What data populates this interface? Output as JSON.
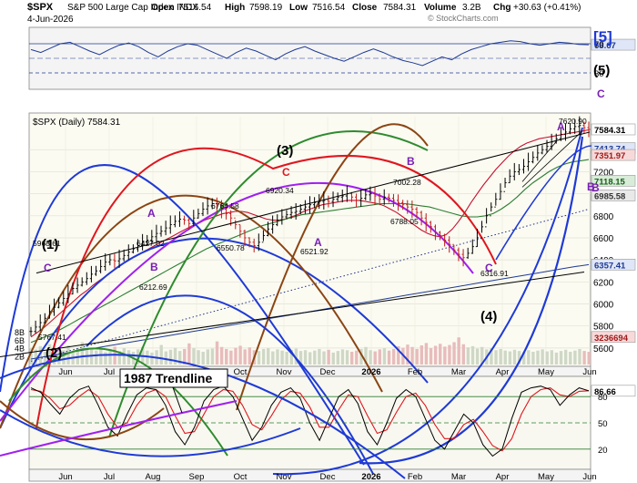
{
  "chart_data": {
    "type": "line",
    "header": {
      "symbol": "$SPX",
      "name": "S&P 500 Large Cap Index",
      "exchange": "INDX",
      "date": "4-Jun-2026",
      "open_label": "Open",
      "open": "7516.54",
      "high_label": "High",
      "high": "7598.19",
      "low_label": "Low",
      "low": "7516.54",
      "close_label": "Close",
      "close": "7584.31",
      "volume_label": "Volume",
      "volume": "3.2B",
      "chg_label": "Chg",
      "chg": "+30.63 (+0.41%)",
      "watermark": "© StockCharts.com"
    },
    "main_legend": "$SPX (Daily) 7584.31",
    "x_tick_labels": [
      "Jun",
      "Jul",
      "Aug",
      "Sep",
      "Oct",
      "Nov",
      "Dec",
      "2026",
      "Feb",
      "Mar",
      "Apr",
      "May",
      "Jun"
    ],
    "price_axis": {
      "ticks": [
        5600,
        5800,
        6000,
        6200,
        6400,
        6600,
        6800,
        7000,
        7200,
        7400
      ],
      "ylim": [
        5450,
        7700
      ],
      "badges": [
        {
          "value": 7584.31,
          "text": "7584.31",
          "bg": "#ffffff",
          "fg": "#000000"
        },
        {
          "value": 7413.74,
          "text": "7413.74",
          "bg": "#dfe6f7",
          "fg": "#1f3a93"
        },
        {
          "value": 7351.97,
          "text": "7351.97",
          "bg": "#f8d9d9",
          "fg": "#a01818"
        },
        {
          "value": 7118.15,
          "text": "7118.15",
          "bg": "#d9ecd9",
          "fg": "#166016"
        },
        {
          "value": 6985.58,
          "text": "6985.58",
          "bg": "#e9e9e9",
          "fg": "#333333"
        },
        {
          "value": 6357.41,
          "text": "6357.41",
          "bg": "#dfe6f7",
          "fg": "#1f3a93"
        },
        {
          "value": 5700,
          "text": "3236694",
          "bg": "#f8d9d9",
          "fg": "#a01818"
        }
      ]
    },
    "volume_axis": {
      "ticks": [
        {
          "value": 2,
          "text": "2B"
        },
        {
          "value": 4,
          "text": "4B"
        },
        {
          "value": 6,
          "text": "6B"
        },
        {
          "value": 8,
          "text": "8B"
        }
      ],
      "ylim": [
        0,
        16
      ]
    },
    "rsi_panel": {
      "ticks": [
        30,
        70
      ],
      "last_label": "68.67",
      "values": [
        62,
        58,
        64,
        70,
        72,
        66,
        60,
        55,
        62,
        68,
        71,
        66,
        58,
        52,
        60,
        66,
        70,
        68,
        62,
        56,
        50,
        58,
        64,
        60,
        54,
        48,
        56,
        62,
        66,
        60,
        55,
        50,
        46,
        52,
        58,
        63,
        58,
        52,
        47,
        44,
        40,
        46,
        52,
        48,
        56,
        62,
        66,
        70,
        72,
        74,
        73,
        70,
        68,
        70,
        72,
        71,
        69,
        68.67
      ]
    },
    "stoch_panel": {
      "ticks": [
        20,
        50,
        80
      ],
      "last_label": "86.66",
      "k_values": [
        90,
        85,
        72,
        60,
        78,
        88,
        92,
        70,
        45,
        35,
        60,
        82,
        90,
        88,
        70,
        40,
        25,
        45,
        75,
        88,
        92,
        80,
        55,
        30,
        45,
        70,
        85,
        90,
        78,
        50,
        30,
        55,
        80,
        88,
        72,
        40,
        25,
        50,
        78,
        88,
        80,
        55,
        30,
        20,
        40,
        60,
        50,
        25,
        12,
        20,
        55,
        85,
        90,
        92,
        88,
        70,
        82,
        90,
        86.66
      ],
      "d_values": [
        88,
        86,
        78,
        66,
        70,
        80,
        88,
        80,
        60,
        45,
        50,
        70,
        84,
        88,
        80,
        58,
        38,
        40,
        60,
        80,
        88,
        86,
        70,
        48,
        42,
        58,
        76,
        86,
        84,
        68,
        45,
        45,
        65,
        82,
        80,
        58,
        38,
        42,
        62,
        80,
        84,
        70,
        48,
        32,
        32,
        48,
        54,
        40,
        24,
        18,
        32,
        60,
        80,
        88,
        90,
        82,
        80,
        86,
        86.7
      ]
    },
    "price_series": [
      5750,
      5790,
      5830,
      5870,
      5930,
      5970,
      6010,
      6050,
      6090,
      6140,
      6170,
      6200,
      6230,
      6270,
      6300,
      6340,
      6380,
      6400,
      6390,
      6410,
      6440,
      6470,
      6500,
      6530,
      6560,
      6580,
      6610,
      6640,
      6660,
      6690,
      6720,
      6750,
      6770,
      6760,
      6730,
      6780,
      6820,
      6860,
      6890,
      6910,
      6900,
      6860,
      6820,
      6780,
      6720,
      6660,
      6600,
      6560,
      6530,
      6560,
      6620,
      6680,
      6720,
      6760,
      6790,
      6810,
      6830,
      6840,
      6860,
      6880,
      6900,
      6920,
      6930,
      6940,
      6930,
      6950,
      6970,
      6980,
      7000,
      6970,
      6940,
      6960,
      6990,
      7000,
      6980,
      6950,
      6970,
      6960,
      6940,
      6920,
      6900,
      6880,
      6860,
      6830,
      6780,
      6740,
      6700,
      6650,
      6620,
      6580,
      6540,
      6490,
      6450,
      6420,
      6460,
      6520,
      6600,
      6700,
      6800,
      6880,
      6950,
      7020,
      7100,
      7160,
      7200,
      7220,
      7250,
      7290,
      7330,
      7370,
      7400,
      7430,
      7470,
      7500,
      7540,
      7560,
      7590,
      7610,
      7620,
      7600,
      7584
    ],
    "volume_series": [
      4.1,
      3.8,
      4.6,
      3.2,
      5.1,
      4.4,
      3.9,
      3.6,
      4.8,
      3.3,
      4.2,
      5.6,
      3.7,
      4.0,
      3.5,
      4.3,
      3.1,
      3.9,
      4.5,
      3.4,
      4.1,
      3.6,
      3.2,
      3.8,
      4.4,
      3.5,
      3.0,
      3.6,
      4.9,
      3.3,
      3.7,
      4.2,
      3.4,
      3.9,
      5.3,
      4.1,
      3.6,
      3.2,
      3.8,
      4.0,
      5.8,
      4.4,
      3.9,
      3.5,
      4.2,
      4.7,
      3.8,
      4.3,
      3.6,
      3.4,
      3.9,
      4.1,
      3.3,
      3.8,
      3.5,
      3.2,
      3.7,
      4.0,
      3.4,
      3.6,
      3.1,
      3.5,
      3.9,
      3.3,
      3.7,
      3.0,
      3.4,
      3.8,
      3.6,
      3.2,
      3.5,
      3.9,
      4.4,
      3.6,
      3.3,
      3.8,
      4.1,
      3.5,
      3.9,
      4.6,
      4.2,
      5.0,
      4.4,
      3.9,
      4.8,
      5.4,
      4.1,
      4.7,
      5.2,
      4.5,
      4.9,
      5.6,
      6.8,
      5.1,
      4.3,
      4.6,
      4.0,
      4.4,
      3.8,
      4.1,
      3.6,
      3.9,
      3.5,
      3.3,
      3.7,
      3.4,
      3.1,
      3.6,
      3.2,
      3.5,
      3.8,
      3.3,
      3.6,
      3.0,
      3.4,
      3.7,
      3.2,
      3.5,
      3.9,
      3.4,
      3.2
    ],
    "moving_averages": [
      {
        "name": "sma20",
        "color": "#c8102e",
        "values": [
          5700,
          5740,
          5780,
          5830,
          5880,
          5930,
          5980,
          6030,
          6080,
          6120,
          6170,
          6210,
          6250,
          6290,
          6330,
          6370,
          6410,
          6440,
          6470,
          6500,
          6530,
          6560,
          6590,
          6620,
          6650,
          6680,
          6710,
          6730,
          6760,
          6780,
          6800,
          6820,
          6830,
          6840,
          6840,
          6830,
          6810,
          6790,
          6770,
          6760,
          6760,
          6770,
          6790,
          6810,
          6840,
          6860,
          6880,
          6900,
          6910,
          6920,
          6930,
          6940,
          6940,
          6940,
          6930,
          6920,
          6910,
          6890,
          6860,
          6830,
          6790,
          6750,
          6710,
          6670,
          6640,
          6620,
          6610,
          6630,
          6680,
          6750,
          6830,
          6920,
          7000,
          7080,
          7150,
          7220,
          7280,
          7340,
          7390,
          7430,
          7460,
          7480,
          7500,
          7510,
          7520,
          7530,
          7540,
          7550,
          7560,
          7570,
          7580
        ]
      },
      {
        "name": "sma50",
        "color": "#2e7d32",
        "values": [
          5650,
          5680,
          5710,
          5740,
          5780,
          5820,
          5860,
          5900,
          5940,
          5980,
          6020,
          6060,
          6100,
          6140,
          6180,
          6220,
          6260,
          6300,
          6340,
          6380,
          6420,
          6460,
          6500,
          6530,
          6560,
          6590,
          6620,
          6650,
          6680,
          6710,
          6730,
          6750,
          6770,
          6790,
          6810,
          6820,
          6830,
          6840,
          6850,
          6860,
          6870,
          6880,
          6890,
          6900,
          6910,
          6910,
          6910,
          6910,
          6900,
          6890,
          6880,
          6860,
          6840,
          6820,
          6800,
          6790,
          6790,
          6800,
          6820,
          6860,
          6910,
          6970,
          7040,
          7100,
          7150,
          7200,
          7240,
          7270,
          7290,
          7300,
          7310
        ]
      },
      {
        "name": "sma200",
        "color": "#1f3a93",
        "values": [
          5500,
          5520,
          5540,
          5560,
          5580,
          5600,
          5620,
          5640,
          5660,
          5680,
          5700,
          5720,
          5740,
          5760,
          5780,
          5800,
          5820,
          5840,
          5860,
          5880,
          5900,
          5920,
          5940,
          5960,
          5980,
          6000,
          6020,
          6040,
          6060,
          6080,
          6100,
          6120,
          6140,
          6160,
          6180,
          6200,
          6220,
          6240,
          6260,
          6280,
          6300,
          6320,
          6340,
          6357
        ]
      }
    ],
    "wave_labels": [
      {
        "text": "(1)",
        "color": "#000000",
        "size": 15
      },
      {
        "text": "(2)",
        "color": "#000000",
        "size": 15
      },
      {
        "text": "(3)",
        "color": "#000000",
        "size": 15
      },
      {
        "text": "(4)",
        "color": "#000000",
        "size": 15
      },
      {
        "text": "C",
        "color": "#7a1fb5",
        "size": 12
      },
      {
        "text": "A",
        "color": "#7a1fb5",
        "size": 12
      },
      {
        "text": "B",
        "color": "#7a1fb5",
        "size": 12
      },
      {
        "text": "C",
        "color": "#e0161e",
        "size": 12
      },
      {
        "text": "A",
        "color": "#7a1fb5",
        "size": 12
      },
      {
        "text": "B",
        "color": "#7a1fb5",
        "size": 12
      },
      {
        "text": "C",
        "color": "#7a1fb5",
        "size": 12
      },
      {
        "text": "A",
        "color": "#7a1fb5",
        "size": 12
      },
      {
        "text": "B",
        "color": "#7a1fb5",
        "size": 12
      },
      {
        "text": "(5)",
        "color": "#000000",
        "size": 15
      },
      {
        "text": "[5]",
        "color": "#1f3ad6",
        "size": 17
      },
      {
        "text": "C",
        "color": "#7a1fb5",
        "size": 12
      },
      {
        "text": "B",
        "color": "#7a1fb5",
        "size": 12
      }
    ],
    "price_annotations": [
      "5968.61",
      "5767.41",
      "6427.02",
      "6212.69",
      "6764.58",
      "6550.78",
      "6920.34",
      "6521.92",
      "7002.28",
      "6788.05",
      "6316.91",
      "7620.90"
    ],
    "trendline_label": "1987 Trendline"
  }
}
